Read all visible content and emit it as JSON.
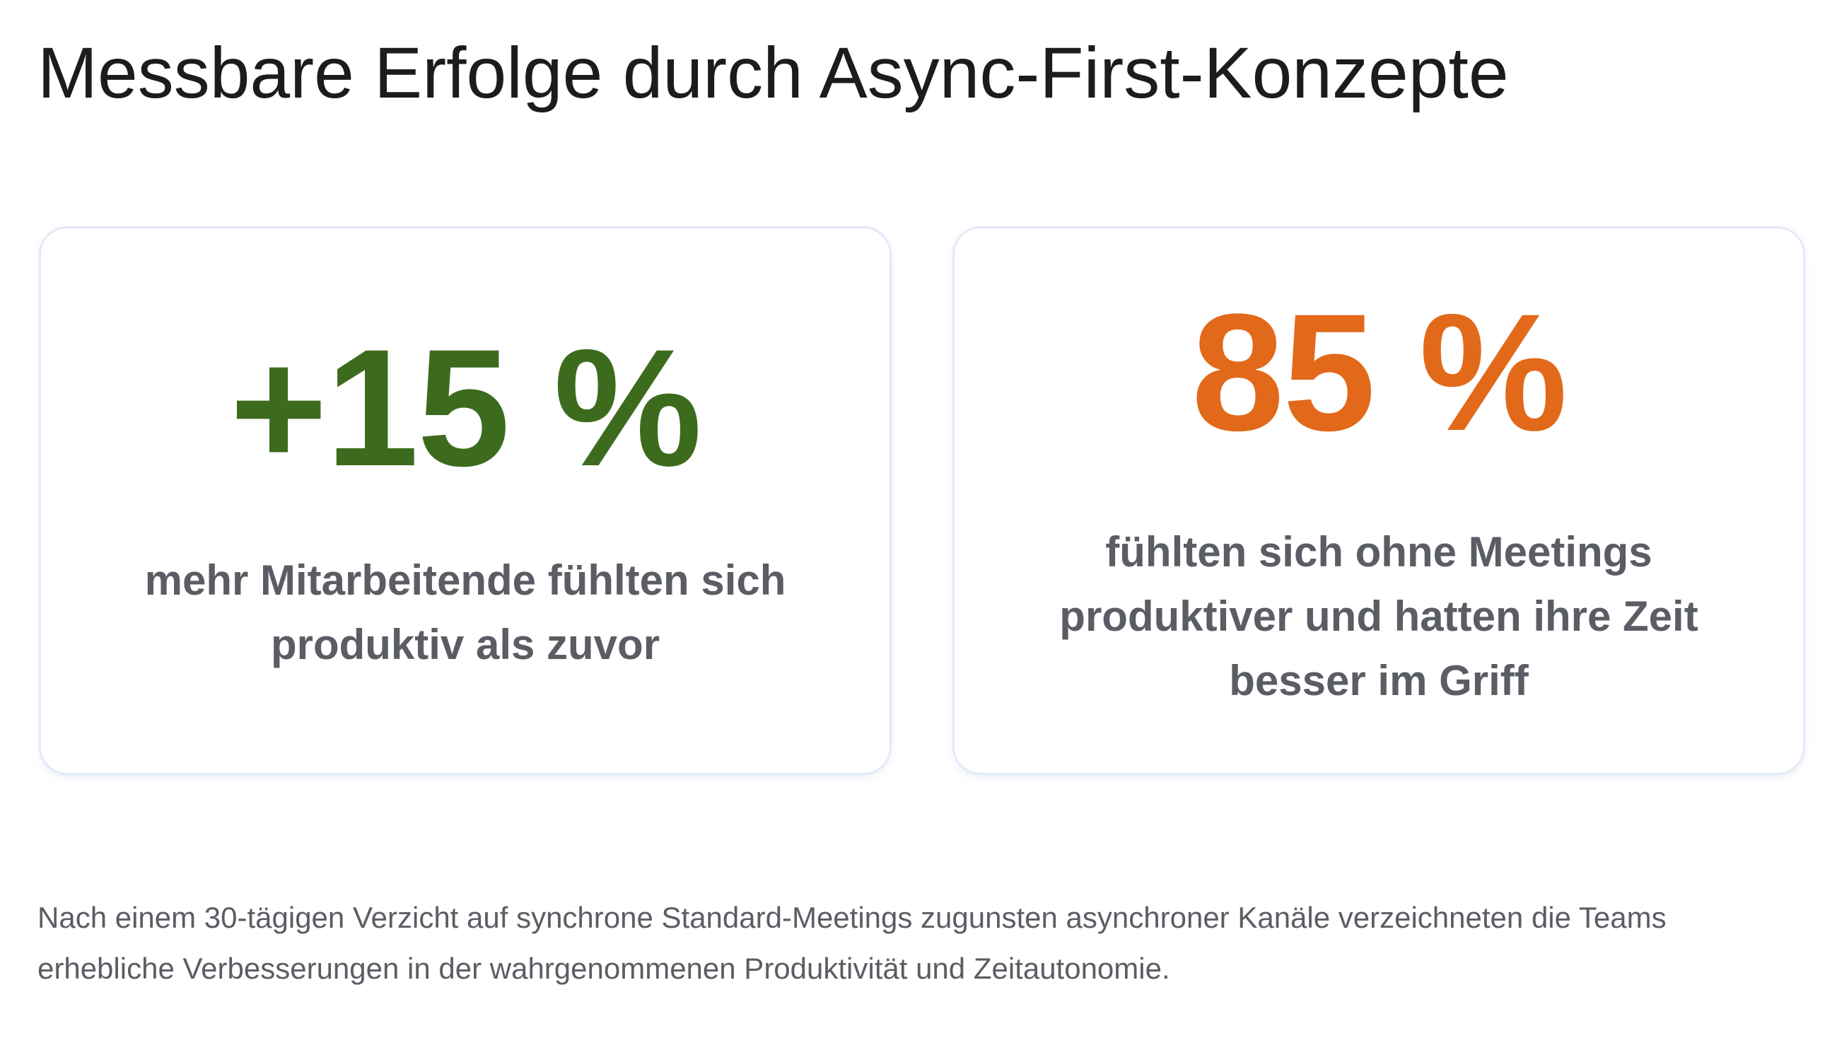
{
  "header": {
    "title": "Messbare Erfolge durch Async-First-Konzepte"
  },
  "stats": [
    {
      "value": "+15 %",
      "description": "mehr Mitarbeitende fühlten sich produktiv als zuvor",
      "color": "#3d6b1e"
    },
    {
      "value": "85 %",
      "description": "fühlten sich ohne Meetings produktiver und hatten ihre Zeit besser im Griff",
      "color": "#e2691a"
    }
  ],
  "footer": {
    "text": "Nach einem 30-tägigen Verzicht auf synchrone Standard-Meetings zugunsten asynchroner Kanäle verzeichneten die Teams erhebliche Verbesserungen in der wahrgenommenen Produktivität und Zeitautonomie."
  }
}
